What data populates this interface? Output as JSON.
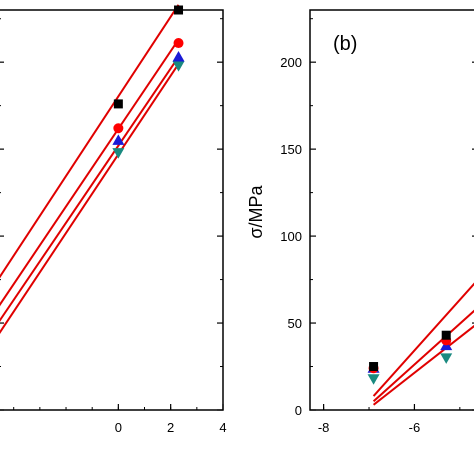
{
  "chart_data": [
    {
      "type": "scatter",
      "title": "",
      "xlabel": "",
      "ylabel": "",
      "xlim": [
        -4.6,
        4
      ],
      "ylim": [
        0,
        230
      ],
      "x_ticks": [
        "0",
        "2",
        "4"
      ],
      "y_ticks": [],
      "grid": false,
      "legend": "none",
      "series": [
        {
          "marker": "square",
          "color": "#000000",
          "points": [
            [
              0,
              176
            ],
            [
              2.3,
              230
            ]
          ],
          "fit": [
            [
              -4.6,
              75
            ],
            [
              2.3,
              233
            ]
          ]
        },
        {
          "marker": "circle",
          "color": "#ff0000",
          "points": [
            [
              0,
              162
            ],
            [
              2.3,
              211
            ]
          ],
          "fit": [
            [
              -4.6,
              59
            ],
            [
              2.3,
              213
            ]
          ]
        },
        {
          "marker": "triangle-up",
          "color": "#1a1ad6",
          "points": [
            [
              0,
              155
            ],
            [
              2.3,
              203
            ]
          ],
          "fit": [
            [
              -4.6,
              50
            ],
            [
              2.3,
              203
            ]
          ]
        },
        {
          "marker": "triangle-down",
          "color": "#1a8a80",
          "points": [
            [
              0,
              148
            ],
            [
              2.3,
              198
            ]
          ],
          "fit": [
            [
              -4.6,
              43
            ],
            [
              2.3,
              199
            ]
          ]
        }
      ]
    },
    {
      "type": "scatter",
      "panel_label": "(b)",
      "title": "",
      "xlabel": "",
      "ylabel": "σ/MPa",
      "xlim": [
        -8.3,
        -4.6
      ],
      "ylim": [
        0,
        230
      ],
      "x_ticks": [
        "-8",
        "-6"
      ],
      "y_ticks": [
        "0",
        "50",
        "100",
        "150",
        "200"
      ],
      "grid": false,
      "legend": "none",
      "series": [
        {
          "marker": "square",
          "color": "#000000",
          "points": [
            [
              -6.9,
              25
            ],
            [
              -5.3,
              43
            ]
          ],
          "fit": [
            [
              -6.9,
              8
            ],
            [
              -4.6,
              75
            ]
          ]
        },
        {
          "marker": "circle",
          "color": "#ff0000",
          "points": [
            [
              -6.9,
              24
            ],
            [
              -5.3,
              40
            ]
          ],
          "fit": [
            [
              -6.9,
              5
            ],
            [
              -4.6,
              59
            ]
          ]
        },
        {
          "marker": "triangle-up",
          "color": "#1a1ad6",
          "points": [
            [
              -6.9,
              24
            ],
            [
              -5.3,
              37
            ]
          ],
          "fit": [
            [
              -6.9,
              3
            ],
            [
              -4.6,
              50
            ]
          ]
        },
        {
          "marker": "triangle-down",
          "color": "#1a8a80",
          "points": [
            [
              -6.9,
              18
            ],
            [
              -5.3,
              30
            ]
          ],
          "fit": []
        }
      ]
    }
  ]
}
